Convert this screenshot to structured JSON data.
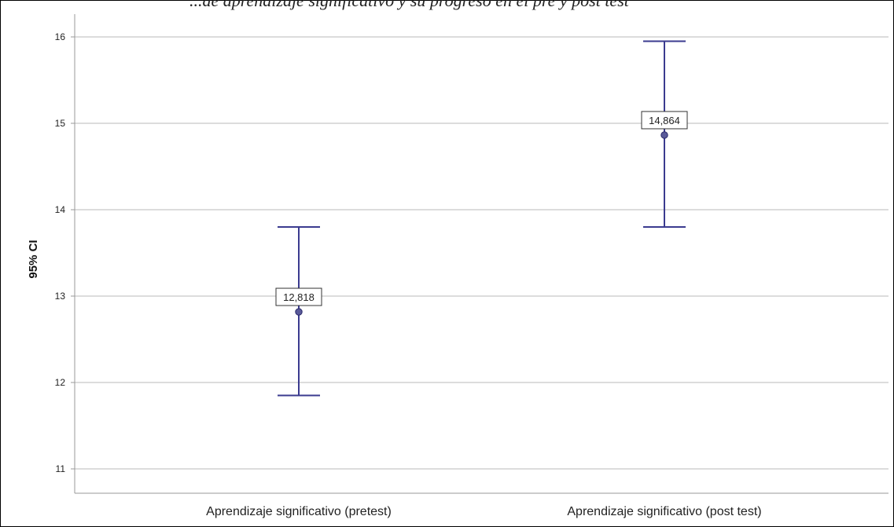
{
  "chart_data": {
    "type": "errorbar",
    "title": "...de aprendizaje significativo y su progreso en el pre y post test",
    "ylabel": "95% CI",
    "xlabel": "",
    "categories": [
      "Aprendizaje significativo (pretest)",
      "Aprendizaje significativo (post test)"
    ],
    "means": [
      12.818,
      14.864
    ],
    "mean_labels": [
      "12,818",
      "14,864"
    ],
    "ci_lower": [
      11.85,
      13.8
    ],
    "ci_upper": [
      13.8,
      15.95
    ],
    "ylim": [
      10.75,
      16.3
    ],
    "yticks": [
      11,
      12,
      13,
      14,
      15,
      16
    ],
    "grid": true,
    "colors": {
      "errorbar": "#3b3b8f",
      "grid": "#c8c8c8",
      "marker": "#3b3b8f"
    }
  }
}
